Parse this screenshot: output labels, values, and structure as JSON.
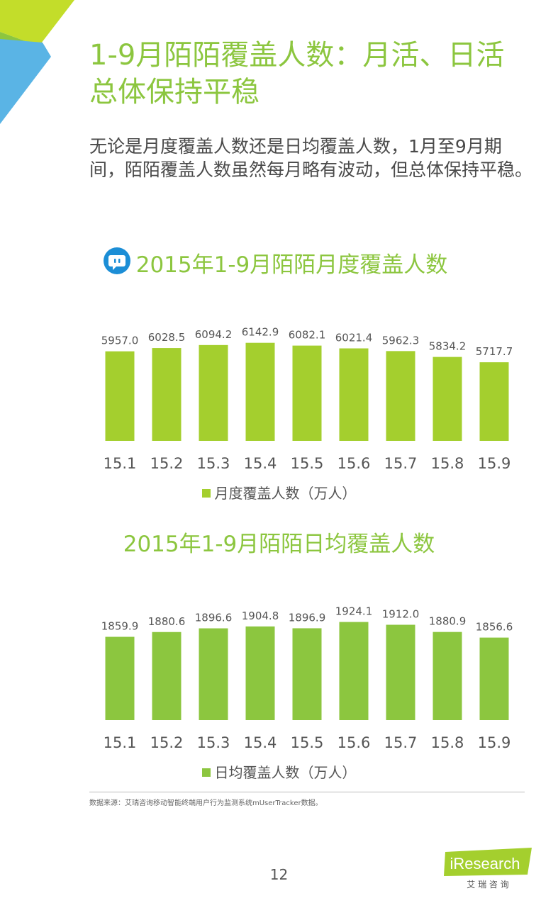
{
  "page": {
    "title": "1-9月陌陌覆盖人数：月活、日活总体保持平稳",
    "intro": "无论是月度覆盖人数还是日均覆盖人数，1月至9月期间，陌陌覆盖人数虽然每月略有波动，但总体保持平稳。",
    "source": "数据来源：艾瑞咨询移动智能终端用户行为监测系统mUserTracker数据。",
    "page_number": "12",
    "logo_text": "iResearch",
    "logo_sub": "艾 瑞 咨 询"
  },
  "colors": {
    "title_green": "#8cc63f",
    "bar_monthly": "#a4cf2e",
    "bar_daily": "#8cc63f",
    "corner_green": "#8cc63f",
    "corner_blue": "#5ab4e5",
    "app_icon": "#1c8ed6"
  },
  "icons": {
    "app_icon": "momo-app-icon"
  },
  "chart_data": [
    {
      "type": "bar",
      "title": "2015年1-9月陌陌月度覆盖人数",
      "categories": [
        "15.1",
        "15.2",
        "15.3",
        "15.4",
        "15.5",
        "15.6",
        "15.7",
        "15.8",
        "15.9"
      ],
      "series": [
        {
          "name": "月度覆盖人数（万人）",
          "values": [
            5957.0,
            6028.5,
            6094.2,
            6142.9,
            6082.1,
            6021.4,
            5962.3,
            5834.2,
            5717.7
          ]
        }
      ],
      "value_labels": [
        "5957.0",
        "6028.5",
        "6094.2",
        "6142.9",
        "6082.1",
        "6021.4",
        "5962.3",
        "5834.2",
        "5717.7"
      ],
      "ylim": [
        4000,
        6200
      ],
      "grid": false,
      "legend": "bottom"
    },
    {
      "type": "bar",
      "title": "2015年1-9月陌陌日均覆盖人数",
      "categories": [
        "15.1",
        "15.2",
        "15.3",
        "15.4",
        "15.5",
        "15.6",
        "15.7",
        "15.8",
        "15.9"
      ],
      "series": [
        {
          "name": "日均覆盖人数（万人）",
          "values": [
            1859.9,
            1880.6,
            1896.6,
            1904.8,
            1896.9,
            1924.1,
            1912.0,
            1880.9,
            1856.6
          ]
        }
      ],
      "value_labels": [
        "1859.9",
        "1880.6",
        "1896.6",
        "1904.8",
        "1896.9",
        "1924.1",
        "1912.0",
        "1880.9",
        "1856.6"
      ],
      "ylim": [
        1500,
        1935
      ],
      "grid": false,
      "legend": "bottom"
    }
  ]
}
